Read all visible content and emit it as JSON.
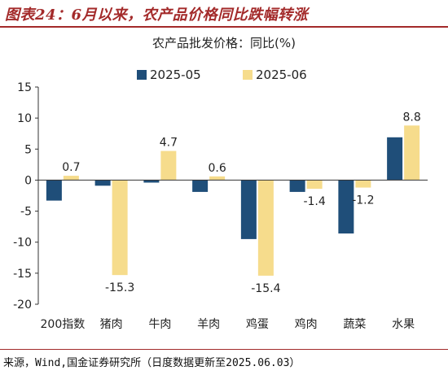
{
  "header": {
    "title": "图表24：6月以来，农产品价格同比跌幅转涨"
  },
  "source": "来源，Wind,国金证券研究所（日度数据更新至2025.06.03）",
  "chart_data": {
    "type": "bar",
    "title": "农产品批发价格：同比(%)",
    "categories": [
      "200指数",
      "猪肉",
      "牛肉",
      "羊肉",
      "鸡蛋",
      "鸡肉",
      "蔬菜",
      "水果"
    ],
    "series": [
      {
        "name": "2025-05",
        "color": "#1f4e79",
        "values": [
          -3.3,
          -0.9,
          -0.4,
          -1.9,
          -9.5,
          -1.9,
          -8.6,
          6.9
        ]
      },
      {
        "name": "2025-06",
        "color": "#f6dc8c",
        "values": [
          0.7,
          -15.3,
          4.7,
          0.6,
          -15.4,
          -1.4,
          -1.2,
          8.8
        ]
      }
    ],
    "data_labels": [
      "0.7",
      "-15.3",
      "4.7",
      "0.6",
      "-15.4",
      "-1.4",
      "-1.2",
      "8.8"
    ],
    "ylim": [
      -20,
      15
    ],
    "yticks": [
      "15",
      "10",
      "5",
      "0",
      "-5",
      "-10",
      "-15",
      "-20"
    ],
    "legend_position": "top-center",
    "grid": false
  }
}
